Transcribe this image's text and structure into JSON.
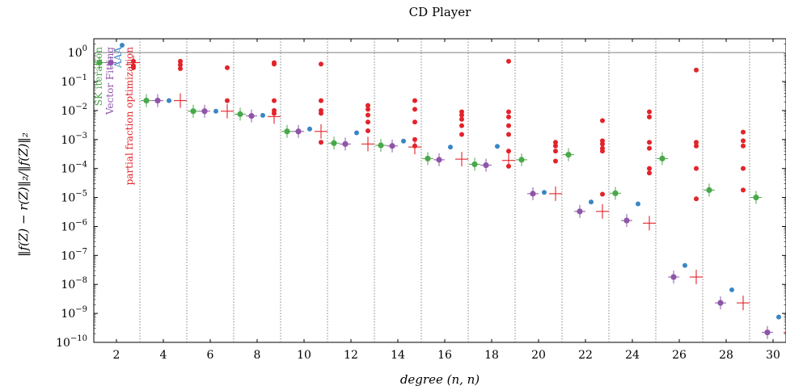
{
  "chart_data": {
    "type": "scatter",
    "title": "CD Player",
    "xlabel": "degree (n, n)",
    "ylabel": "‖f(Z) − r(Z)‖₂/‖f(Z)‖₂",
    "x_ticks": [
      2,
      4,
      6,
      8,
      10,
      12,
      14,
      16,
      18,
      20,
      22,
      24,
      26,
      28,
      30
    ],
    "y_scale": "log",
    "y_ticks": [
      {
        "value": 1e-10,
        "label_base": "10",
        "label_exp": "−10"
      },
      {
        "value": 1e-09,
        "label_base": "10",
        "label_exp": "−9"
      },
      {
        "value": 1e-08,
        "label_base": "10",
        "label_exp": "−8"
      },
      {
        "value": 1e-07,
        "label_base": "10",
        "label_exp": "−7"
      },
      {
        "value": 1e-06,
        "label_base": "10",
        "label_exp": "−6"
      },
      {
        "value": 1e-05,
        "label_base": "10",
        "label_exp": "−5"
      },
      {
        "value": 0.0001,
        "label_base": "10",
        "label_exp": "−4"
      },
      {
        "value": 0.001,
        "label_base": "10",
        "label_exp": "−3"
      },
      {
        "value": 0.01,
        "label_base": "10",
        "label_exp": "−2"
      },
      {
        "value": 0.1,
        "label_base": "10",
        "label_exp": "−1"
      },
      {
        "value": 1,
        "label_base": "10",
        "label_exp": "0"
      }
    ],
    "ylim": [
      1e-10,
      3
    ],
    "reference_line": 1,
    "series": [
      {
        "name": "SK iteration",
        "color": "#4aa84a",
        "marker": "dot-cross",
        "points": [
          [
            2,
            0.45
          ],
          [
            4,
            0.022
          ],
          [
            6,
            0.0095
          ],
          [
            8,
            0.0075
          ],
          [
            10,
            0.0019
          ],
          [
            12,
            0.00075
          ],
          [
            14,
            0.00063
          ],
          [
            16,
            0.00022
          ],
          [
            18,
            0.00014
          ],
          [
            20,
            0.0002
          ],
          [
            22,
            0.0003
          ],
          [
            24,
            1.4e-05
          ],
          [
            26,
            0.00022
          ],
          [
            28,
            1.8e-05
          ],
          [
            30,
            1e-05
          ]
        ]
      },
      {
        "name": "Vector Fitting",
        "color": "#8e55a8",
        "marker": "dot-cross",
        "points": [
          [
            2,
            0.45
          ],
          [
            4,
            0.022
          ],
          [
            6,
            0.0095
          ],
          [
            8,
            0.0065
          ],
          [
            10,
            0.0019
          ],
          [
            12,
            0.0007
          ],
          [
            14,
            0.0006
          ],
          [
            16,
            0.0002
          ],
          [
            18,
            0.00013
          ],
          [
            20,
            1.35e-05
          ],
          [
            22,
            3.3e-06
          ],
          [
            24,
            1.6e-06
          ],
          [
            26,
            1.8e-08
          ],
          [
            28,
            2.3e-09
          ],
          [
            30,
            2.2e-10
          ]
        ]
      },
      {
        "name": "AAA",
        "color": "#3a86c4",
        "marker": "dot",
        "points": [
          [
            2,
            1.8
          ],
          [
            4,
            0.022
          ],
          [
            6,
            0.0095
          ],
          [
            8,
            0.0068
          ],
          [
            10,
            0.0023
          ],
          [
            12,
            0.0017
          ],
          [
            14,
            0.00088
          ],
          [
            16,
            0.00055
          ],
          [
            18,
            0.00058
          ],
          [
            20,
            1.5e-05
          ],
          [
            22,
            7e-06
          ],
          [
            24,
            6e-06
          ],
          [
            26,
            4.5e-08
          ],
          [
            28,
            6.5e-09
          ],
          [
            30,
            7.5e-10
          ]
        ]
      },
      {
        "name": "partial fraction optimization",
        "color": "#e3232a",
        "marker": "plus-with-dots",
        "points": [
          [
            2,
            0.45
          ],
          [
            4,
            0.022
          ],
          [
            6,
            0.0095
          ],
          [
            8,
            0.0062
          ],
          [
            10,
            0.0019
          ],
          [
            12,
            0.0007
          ],
          [
            14,
            0.00055
          ],
          [
            16,
            0.00021
          ],
          [
            18,
            0.00019
          ],
          [
            20,
            1.35e-05
          ],
          [
            22,
            3.3e-06
          ],
          [
            24,
            1.3e-06
          ],
          [
            26,
            1.8e-08
          ],
          [
            28,
            2.3e-09
          ],
          [
            30,
            2.2e-10
          ]
        ],
        "extra_points": [
          [
            2,
            0.5
          ],
          [
            2,
            0.35
          ],
          [
            2,
            0.3
          ],
          [
            4,
            0.5
          ],
          [
            4,
            0.38
          ],
          [
            4,
            0.28
          ],
          [
            6,
            0.3
          ],
          [
            6,
            0.022
          ],
          [
            8,
            0.45
          ],
          [
            8,
            0.4
          ],
          [
            8,
            0.022
          ],
          [
            8,
            0.01
          ],
          [
            8,
            0.008
          ],
          [
            10,
            0.4
          ],
          [
            10,
            0.022
          ],
          [
            10,
            0.01
          ],
          [
            10,
            0.008
          ],
          [
            10,
            0.0008
          ],
          [
            12,
            0.015
          ],
          [
            12,
            0.011
          ],
          [
            12,
            0.007
          ],
          [
            12,
            0.004
          ],
          [
            12,
            0.002
          ],
          [
            14,
            0.022
          ],
          [
            14,
            0.011
          ],
          [
            14,
            0.004
          ],
          [
            14,
            0.001
          ],
          [
            14,
            0.0006
          ],
          [
            16,
            0.009
          ],
          [
            16,
            0.007
          ],
          [
            16,
            0.005
          ],
          [
            16,
            0.003
          ],
          [
            16,
            0.0015
          ],
          [
            18,
            0.5
          ],
          [
            18,
            0.009
          ],
          [
            18,
            0.006
          ],
          [
            18,
            0.003
          ],
          [
            18,
            0.0015
          ],
          [
            18,
            0.0004
          ],
          [
            18,
            0.00012
          ],
          [
            20,
            0.0008
          ],
          [
            20,
            0.0006
          ],
          [
            20,
            0.0004
          ],
          [
            20,
            0.00018
          ],
          [
            22,
            0.0045
          ],
          [
            22,
            0.0009
          ],
          [
            22,
            0.0007
          ],
          [
            22,
            0.0005
          ],
          [
            22,
            0.0004
          ],
          [
            22,
            1.3e-05
          ],
          [
            24,
            0.009
          ],
          [
            24,
            0.006
          ],
          [
            24,
            0.0008
          ],
          [
            24,
            0.0005
          ],
          [
            24,
            0.0001
          ],
          [
            24,
            7e-05
          ],
          [
            26,
            0.25
          ],
          [
            26,
            0.0008
          ],
          [
            26,
            0.0006
          ],
          [
            26,
            0.0001
          ],
          [
            26,
            9e-06
          ],
          [
            28,
            0.0018
          ],
          [
            28,
            0.0009
          ],
          [
            28,
            0.0006
          ],
          [
            28,
            0.0001
          ],
          [
            28,
            1.8e-05
          ],
          [
            30,
            0.008
          ],
          [
            30,
            0.0008
          ],
          [
            30,
            0.0005
          ],
          [
            30,
            0.0001
          ],
          [
            30,
            1.4e-05
          ]
        ]
      }
    ]
  }
}
